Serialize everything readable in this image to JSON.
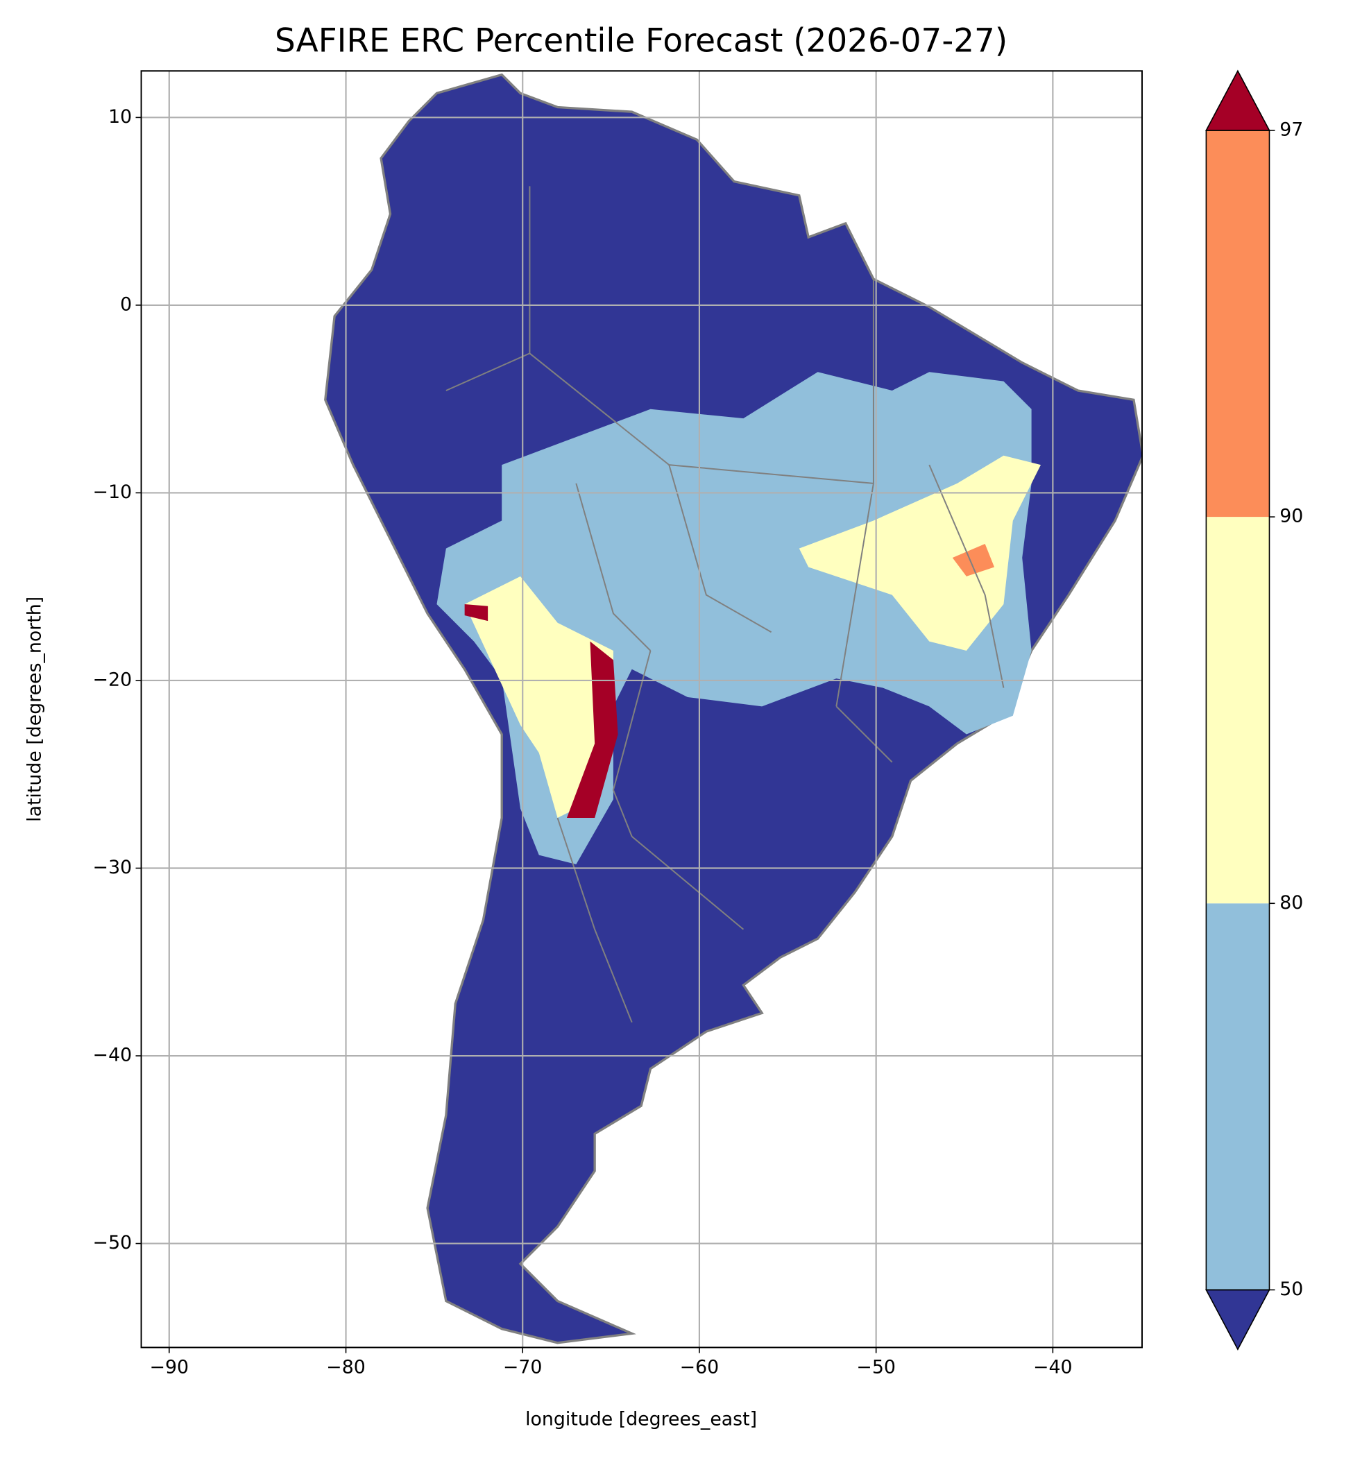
{
  "chart_data": {
    "type": "map",
    "title": "SAFIRE ERC Percentile Forecast (2026-07-27)",
    "x_label": "longitude [degrees_east]",
    "y_label": "latitude [degrees_north]",
    "xlim": [
      -91.58,
      -34.95
    ],
    "ylim": [
      -55.54,
      12.48
    ],
    "xticks": [
      -90,
      -80,
      -70,
      -60,
      -50,
      -40
    ],
    "yticks": [
      10,
      0,
      -10,
      -20,
      -30,
      -40,
      -50
    ],
    "grid": true,
    "colorbar": {
      "boundaries": [
        50,
        80,
        90,
        97
      ],
      "colors": [
        "#313695",
        "#91bfdb",
        "#ffffbf",
        "#fc8d59",
        "#a50026"
      ],
      "extend": "both"
    }
  }
}
